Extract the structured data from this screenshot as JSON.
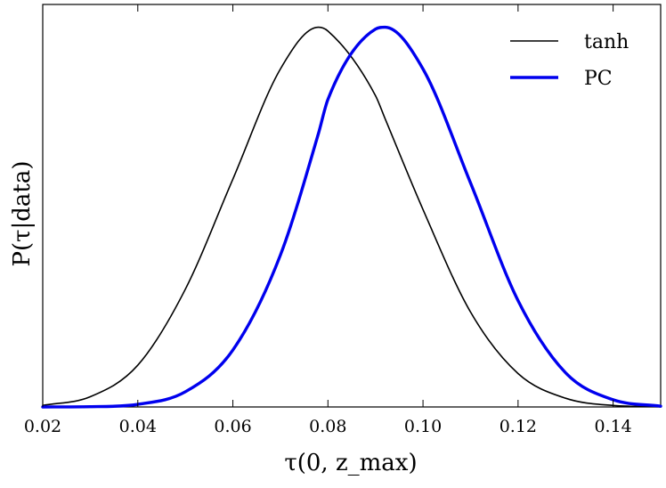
{
  "chart_data": {
    "type": "line",
    "title": "",
    "xlabel": "τ(0, z_max)",
    "ylabel": "P(τ|data)",
    "xlim": [
      0.02,
      0.15
    ],
    "ylim": [
      0,
      1.06
    ],
    "xticks": [
      0.02,
      0.04,
      0.06,
      0.08,
      0.1,
      0.12,
      0.14
    ],
    "xtick_labels": [
      "0.02",
      "0.04",
      "0.06",
      "0.08",
      "0.10",
      "0.12",
      "0.14"
    ],
    "yticks": [],
    "grid": false,
    "legend_position": "top-right",
    "x": [
      0.02,
      0.03,
      0.04,
      0.05,
      0.06,
      0.07,
      0.078,
      0.08,
      0.09,
      0.092,
      0.1,
      0.11,
      0.12,
      0.13,
      0.14,
      0.15
    ],
    "series": [
      {
        "name": "tanh",
        "color": "#000000",
        "line_width": 1.6,
        "values": [
          0.004,
          0.027,
          0.11,
          0.31,
          0.6,
          0.89,
          1.0,
          0.99,
          0.82,
          0.76,
          0.52,
          0.25,
          0.088,
          0.023,
          0.004,
          0.0005
        ]
      },
      {
        "name": "PC",
        "color": "#0000ee",
        "line_width": 3.4,
        "values": [
          0.0,
          0.0007,
          0.007,
          0.04,
          0.15,
          0.4,
          0.72,
          0.81,
          0.995,
          1.0,
          0.89,
          0.59,
          0.28,
          0.09,
          0.019,
          0.002
        ]
      }
    ]
  }
}
